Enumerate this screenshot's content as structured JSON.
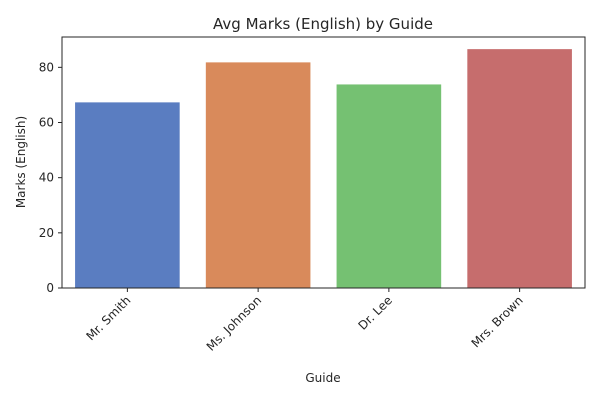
{
  "chart_data": {
    "type": "bar",
    "title": "Avg Marks (English) by Guide",
    "xlabel": "Guide",
    "ylabel": "Marks (English)",
    "categories": [
      "Mr. Smith",
      "Ms. Johnson",
      "Dr. Lee",
      "Mrs. Brown"
    ],
    "values": [
      67.3,
      81.8,
      73.8,
      86.6
    ],
    "colors": [
      "#5a7dc1",
      "#d98a5b",
      "#75c172",
      "#c66d6d"
    ],
    "ylim": [
      0,
      91
    ],
    "yticks": [
      "0",
      "20",
      "40",
      "60",
      "80"
    ],
    "grid": false,
    "legend": "none"
  }
}
